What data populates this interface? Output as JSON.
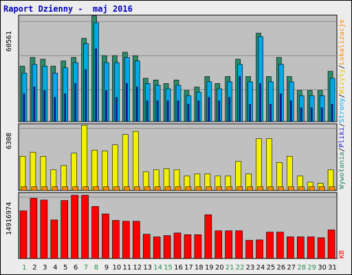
{
  "window_title": "Raport Dzienny -  maj 2016",
  "colors": {
    "panel_bg": "#c0c0c0",
    "odwiedziny": "#2a8a6a",
    "strony": "#00a8e8",
    "pliki": "#2020c8",
    "lokalizacje": "#f0f000",
    "wywolania": "#ff8c00",
    "kb": "#ff0000",
    "weekend_tick": "#2a8a4a",
    "weekday_tick": "#000000"
  },
  "right_legend": {
    "top": [
      {
        "text": "Wywołania",
        "color": "#2a8a6a"
      },
      {
        "text": "/",
        "color": "#000000"
      },
      {
        "text": "Pliki",
        "color": "#2020c8"
      },
      {
        "text": "/",
        "color": "#000000"
      },
      {
        "text": "Strony",
        "color": "#00a8e8"
      },
      {
        "text": "/",
        "color": "#000000"
      },
      {
        "text": "Wizyty",
        "color": "#f0c000"
      },
      {
        "text": "/",
        "color": "#000000"
      },
      {
        "text": "Lokalizacje",
        "color": "#ff8c00"
      }
    ],
    "bottom": "KB"
  },
  "chart_data": [
    {
      "type": "bar",
      "ymax_label": "60561",
      "ylim": [
        0,
        60561
      ],
      "categories": [
        "1",
        "2",
        "3",
        "4",
        "5",
        "6",
        "7",
        "8",
        "9",
        "10",
        "11",
        "12",
        "13",
        "14",
        "15",
        "16",
        "17",
        "18",
        "19",
        "20",
        "21",
        "22",
        "23",
        "24",
        "25",
        "26",
        "27",
        "28",
        "29",
        "30",
        "31"
      ],
      "series": [
        {
          "name": "Wywołania",
          "values": [
            32000,
            37000,
            36000,
            32000,
            35000,
            37000,
            48000,
            61000,
            38000,
            38000,
            40000,
            38000,
            25000,
            24000,
            22000,
            24000,
            18000,
            20000,
            26000,
            22000,
            26000,
            36000,
            26000,
            51000,
            26000,
            37000,
            26000,
            18000,
            18000,
            18000,
            29000
          ]
        },
        {
          "name": "Pliki",
          "values": [
            28000,
            33000,
            32000,
            28000,
            31000,
            34000,
            45000,
            57000,
            34000,
            34000,
            37000,
            35000,
            22000,
            21000,
            19000,
            21000,
            15000,
            17000,
            23000,
            19000,
            23000,
            33000,
            23000,
            49000,
            23000,
            33000,
            23000,
            15000,
            15000,
            15000,
            25000
          ]
        },
        {
          "name": "Strony",
          "values": [
            16000,
            20000,
            18000,
            14000,
            16000,
            22000,
            30000,
            42000,
            18000,
            14000,
            22000,
            20000,
            12000,
            12000,
            12000,
            12000,
            10000,
            12000,
            14000,
            12000,
            14000,
            26000,
            10000,
            22000,
            10000,
            16000,
            12000,
            8000,
            8000,
            8000,
            10000
          ]
        }
      ]
    },
    {
      "type": "bar",
      "ymax_label": "6308",
      "ylim": [
        0,
        6308
      ],
      "categories": [
        "1",
        "2",
        "3",
        "4",
        "5",
        "6",
        "7",
        "8",
        "9",
        "10",
        "11",
        "12",
        "13",
        "14",
        "15",
        "16",
        "17",
        "18",
        "19",
        "20",
        "21",
        "22",
        "23",
        "24",
        "25",
        "26",
        "27",
        "28",
        "29",
        "30",
        "31"
      ],
      "series": [
        {
          "name": "Wizyty",
          "values": [
            3300,
            3700,
            3300,
            2000,
            2400,
            3600,
            6300,
            3900,
            3800,
            4400,
            5400,
            5700,
            1800,
            2000,
            2100,
            2000,
            1400,
            1600,
            1600,
            1400,
            1400,
            2800,
            1600,
            5000,
            5000,
            2700,
            3300,
            1400,
            800,
            700,
            2000
          ]
        },
        {
          "name": "Lokalizacje",
          "values": [
            350,
            350,
            350,
            350,
            350,
            350,
            350,
            350,
            350,
            350,
            350,
            350,
            350,
            350,
            350,
            350,
            350,
            350,
            350,
            350,
            350,
            350,
            350,
            350,
            350,
            350,
            350,
            350,
            350,
            350,
            350
          ]
        }
      ]
    },
    {
      "type": "bar",
      "ymax_label": "14916974",
      "ylim": [
        0,
        14916974
      ],
      "categories": [
        "1",
        "2",
        "3",
        "4",
        "5",
        "6",
        "7",
        "8",
        "9",
        "10",
        "11",
        "12",
        "13",
        "14",
        "15",
        "16",
        "17",
        "18",
        "19",
        "20",
        "21",
        "22",
        "23",
        "24",
        "25",
        "26",
        "27",
        "28",
        "29",
        "30",
        "31"
      ],
      "series": [
        {
          "name": "KB",
          "values": [
            11000000,
            13900000,
            13500000,
            8900000,
            13400000,
            14600000,
            14600000,
            12000000,
            10300000,
            8800000,
            8600000,
            8600000,
            5600000,
            5000000,
            5300000,
            5900000,
            5500000,
            5500000,
            10100000,
            6400000,
            6400000,
            6400000,
            4200000,
            4300000,
            6100000,
            6100000,
            5000000,
            5000000,
            5000000,
            4800000,
            6600000
          ]
        }
      ]
    }
  ]
}
